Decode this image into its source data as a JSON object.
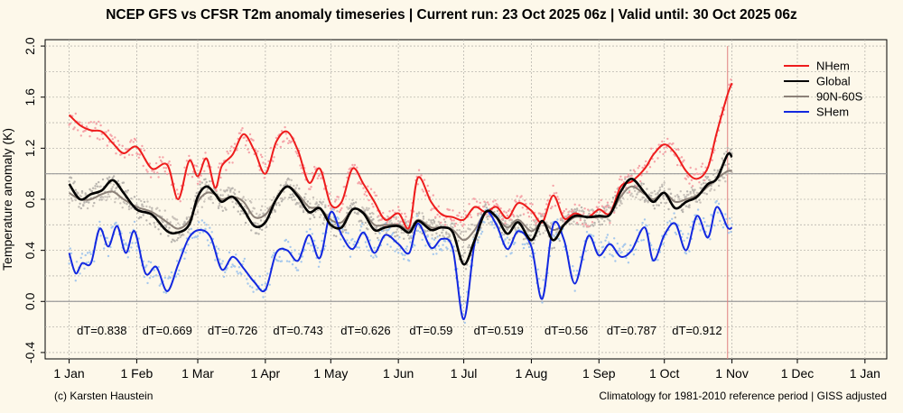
{
  "title": "NCEP GFS vs CFSR T2m anomaly timeseries | Current run: 23 Oct 2025 06z | Valid until: 30 Oct 2025 06z",
  "footer_left": "(c) Karsten Haustein",
  "footer_right": "Climatology for 1981-2010 reference period | GISS adjusted",
  "chart_data": {
    "type": "line",
    "title": "NCEP GFS vs CFSR T2m anomaly timeseries | Current run: 23 Oct 2025 06z | Valid until: 30 Oct 2025 06z",
    "ylabel": "Temperature anomaly (K)",
    "xlabel": "",
    "ylim": [
      -0.45,
      2.05
    ],
    "xlim_days": [
      -11,
      375
    ],
    "grid": true,
    "legend_position": "top-right",
    "x_ticks": [
      {
        "label": "1 Jan",
        "day": 0
      },
      {
        "label": "1 Feb",
        "day": 31
      },
      {
        "label": "1 Mar",
        "day": 59
      },
      {
        "label": "1 Apr",
        "day": 90
      },
      {
        "label": "1 May",
        "day": 120
      },
      {
        "label": "1 Jun",
        "day": 151
      },
      {
        "label": "1 Jul",
        "day": 181
      },
      {
        "label": "1 Aug",
        "day": 212
      },
      {
        "label": "1 Sep",
        "day": 243
      },
      {
        "label": "1 Oct",
        "day": 273
      },
      {
        "label": "1 Nov",
        "day": 304
      },
      {
        "label": "1 Dec",
        "day": 334
      },
      {
        "label": "1 Jan",
        "day": 365
      }
    ],
    "y_ticks": [
      "-0.4",
      "0.0",
      "0.4",
      "0.8",
      "1.2",
      "1.6",
      "2.0"
    ],
    "y_tick_values": [
      -0.4,
      0.0,
      0.4,
      0.8,
      1.2,
      1.6,
      2.0
    ],
    "reference_lines": [
      0.0,
      1.0
    ],
    "valid_until_day": 302,
    "monthly_dT": [
      {
        "label": "dT=0.838",
        "day": 15
      },
      {
        "label": "dT=0.669",
        "day": 45
      },
      {
        "label": "dT=0.726",
        "day": 75
      },
      {
        "label": "dT=0.743",
        "day": 105
      },
      {
        "label": "dT=0.626",
        "day": 136
      },
      {
        "label": "dT=0.59",
        "day": 166
      },
      {
        "label": "dT=0.519",
        "day": 197
      },
      {
        "label": "dT=0.56",
        "day": 228
      },
      {
        "label": "dT=0.787",
        "day": 258
      },
      {
        "label": "dT=0.912",
        "day": 288
      }
    ],
    "series": [
      {
        "name": "NHem",
        "color": "#ee1c1c",
        "dot_color": "#f5a3a8",
        "x": [
          0,
          5,
          10,
          15,
          20,
          25,
          31,
          38,
          45,
          50,
          55,
          59,
          63,
          67,
          70,
          75,
          80,
          85,
          90,
          95,
          100,
          105,
          110,
          115,
          120,
          125,
          130,
          135,
          140,
          145,
          151,
          156,
          160,
          166,
          171,
          176,
          181,
          186,
          191,
          196,
          201,
          206,
          212,
          217,
          222,
          227,
          232,
          238,
          243,
          248,
          253,
          258,
          264,
          268,
          273,
          278,
          283,
          288,
          293,
          297,
          302,
          304
        ],
        "values": [
          1.46,
          1.38,
          1.34,
          1.33,
          1.24,
          1.16,
          1.21,
          1.04,
          1.07,
          0.8,
          1.1,
          0.98,
          1.12,
          0.89,
          1.06,
          1.15,
          1.31,
          1.18,
          1.0,
          1.25,
          1.33,
          1.18,
          0.93,
          1.04,
          0.76,
          0.78,
          1.04,
          0.92,
          0.78,
          0.64,
          0.69,
          0.58,
          0.97,
          0.78,
          0.68,
          0.66,
          0.64,
          0.74,
          0.7,
          0.74,
          0.65,
          0.77,
          0.71,
          0.62,
          0.83,
          0.65,
          0.69,
          0.66,
          0.72,
          0.69,
          0.9,
          0.94,
          1.04,
          1.15,
          1.23,
          1.16,
          1.02,
          0.96,
          1.05,
          1.32,
          1.62,
          1.71
        ]
      },
      {
        "name": "Global",
        "color": "#000000",
        "dot_color": "#b8b4ae",
        "x": [
          0,
          5,
          10,
          15,
          20,
          25,
          31,
          38,
          45,
          50,
          55,
          59,
          63,
          67,
          70,
          75,
          80,
          85,
          90,
          95,
          100,
          105,
          110,
          115,
          120,
          125,
          130,
          135,
          140,
          145,
          151,
          156,
          160,
          166,
          171,
          176,
          181,
          186,
          191,
          196,
          201,
          206,
          212,
          217,
          222,
          227,
          232,
          238,
          243,
          248,
          253,
          258,
          264,
          268,
          273,
          278,
          283,
          288,
          293,
          297,
          302,
          304
        ],
        "values": [
          0.92,
          0.8,
          0.84,
          0.87,
          0.95,
          0.85,
          0.72,
          0.68,
          0.55,
          0.54,
          0.6,
          0.82,
          0.9,
          0.84,
          0.78,
          0.82,
          0.72,
          0.59,
          0.62,
          0.8,
          0.9,
          0.82,
          0.7,
          0.73,
          0.6,
          0.58,
          0.72,
          0.69,
          0.56,
          0.58,
          0.59,
          0.54,
          0.63,
          0.56,
          0.58,
          0.54,
          0.29,
          0.48,
          0.7,
          0.66,
          0.53,
          0.62,
          0.48,
          0.63,
          0.48,
          0.6,
          0.67,
          0.66,
          0.67,
          0.68,
          0.86,
          0.96,
          0.85,
          0.78,
          0.85,
          0.73,
          0.78,
          0.82,
          0.92,
          0.96,
          1.15,
          1.13
        ]
      },
      {
        "name": "90N-60S",
        "color": "#8c8178",
        "dot_color": "#c9c2ba",
        "x": [
          0,
          5,
          10,
          15,
          20,
          25,
          31,
          38,
          45,
          50,
          55,
          59,
          63,
          67,
          70,
          75,
          80,
          85,
          90,
          95,
          100,
          105,
          110,
          115,
          120,
          125,
          130,
          135,
          140,
          145,
          151,
          156,
          160,
          166,
          171,
          176,
          181,
          186,
          191,
          196,
          201,
          206,
          212,
          217,
          222,
          227,
          232,
          238,
          243,
          248,
          253,
          258,
          264,
          268,
          273,
          278,
          283,
          288,
          293,
          297,
          302,
          304
        ],
        "values": [
          0.85,
          0.8,
          0.8,
          0.84,
          0.86,
          0.8,
          0.74,
          0.7,
          0.62,
          0.57,
          0.63,
          0.78,
          0.85,
          0.84,
          0.8,
          0.82,
          0.78,
          0.66,
          0.68,
          0.8,
          0.9,
          0.84,
          0.74,
          0.73,
          0.64,
          0.62,
          0.72,
          0.7,
          0.6,
          0.6,
          0.6,
          0.56,
          0.64,
          0.58,
          0.58,
          0.56,
          0.48,
          0.56,
          0.7,
          0.66,
          0.58,
          0.64,
          0.55,
          0.62,
          0.56,
          0.6,
          0.66,
          0.66,
          0.66,
          0.68,
          0.82,
          0.9,
          0.84,
          0.8,
          0.85,
          0.78,
          0.8,
          0.83,
          0.9,
          0.96,
          1.02,
          1.02
        ]
      },
      {
        "name": "SHem",
        "color": "#1328e0",
        "dot_color": "#a6c8ec",
        "x": [
          0,
          3,
          6,
          10,
          14,
          18,
          22,
          26,
          30,
          35,
          40,
          45,
          50,
          55,
          60,
          65,
          70,
          75,
          80,
          85,
          90,
          95,
          100,
          105,
          110,
          115,
          120,
          125,
          130,
          135,
          140,
          145,
          151,
          156,
          160,
          166,
          171,
          176,
          181,
          186,
          191,
          196,
          201,
          206,
          212,
          217,
          222,
          227,
          232,
          238,
          243,
          248,
          253,
          258,
          264,
          268,
          273,
          278,
          283,
          288,
          293,
          297,
          302,
          304
        ],
        "values": [
          0.38,
          0.22,
          0.3,
          0.3,
          0.57,
          0.43,
          0.59,
          0.38,
          0.55,
          0.22,
          0.27,
          0.08,
          0.29,
          0.5,
          0.56,
          0.5,
          0.25,
          0.35,
          0.26,
          0.15,
          0.09,
          0.38,
          0.4,
          0.32,
          0.52,
          0.34,
          0.7,
          0.52,
          0.41,
          0.54,
          0.38,
          0.52,
          0.45,
          0.38,
          0.61,
          0.42,
          0.49,
          0.41,
          -0.14,
          0.46,
          0.7,
          0.6,
          0.41,
          0.55,
          0.43,
          0.02,
          0.6,
          0.48,
          0.14,
          0.51,
          0.36,
          0.45,
          0.35,
          0.4,
          0.58,
          0.32,
          0.52,
          0.61,
          0.4,
          0.67,
          0.5,
          0.74,
          0.58,
          0.58
        ]
      }
    ]
  }
}
